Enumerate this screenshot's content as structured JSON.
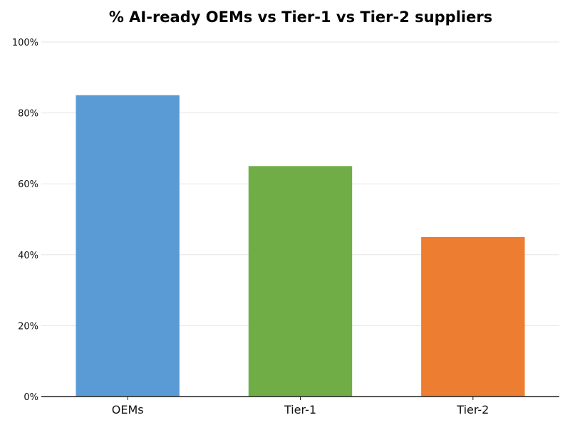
{
  "chart_data": {
    "type": "bar",
    "title": "% AI-ready OEMs vs Tier-1 vs Tier-2 suppliers",
    "categories": [
      "OEMs",
      "Tier-1",
      "Tier-2"
    ],
    "values": [
      85,
      65,
      45
    ],
    "colors": [
      "#5B9BD5",
      "#70AD47",
      "#ED7D31"
    ],
    "xlabel": "",
    "ylabel": "",
    "ylim": [
      0,
      100
    ],
    "yticks": [
      0,
      20,
      40,
      60,
      80,
      100
    ],
    "ytick_labels": [
      "0%",
      "20%",
      "40%",
      "60%",
      "80%",
      "100%"
    ],
    "grid": "horizontal",
    "legend": "none"
  }
}
